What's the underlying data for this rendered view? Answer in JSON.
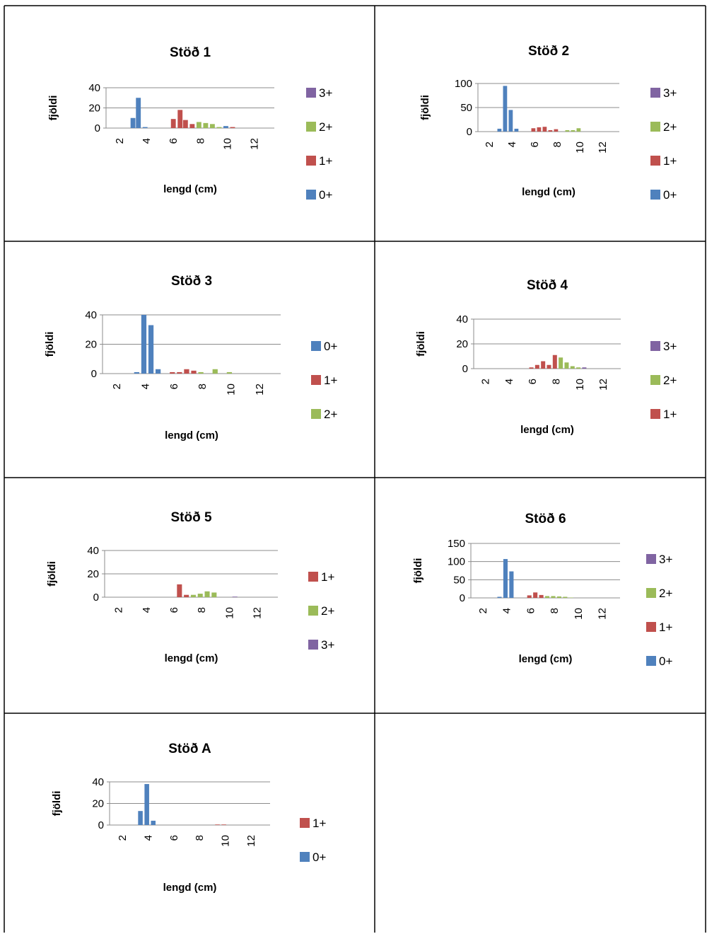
{
  "colors": {
    "0+": "#4f81bd",
    "1+": "#c0504d",
    "2+": "#9bbb59",
    "3+": "#8064a2"
  },
  "chart_data": [
    {
      "type": "bar",
      "title": "Stöð 1",
      "xlabel": "lengd (cm)",
      "ylabel": "fjöldi",
      "xlim": [
        1,
        13.5
      ],
      "ylim": [
        0,
        40
      ],
      "yticks": [
        0,
        20,
        40
      ],
      "xticks": [
        2,
        4,
        6,
        8,
        10,
        12
      ],
      "grid": true,
      "legend_placement": "right",
      "legend_order": [
        "3+",
        "2+",
        "1+",
        "0+"
      ],
      "series": [
        {
          "name": "0+",
          "points": [
            [
              3.0,
              10
            ],
            [
              3.4,
              30
            ],
            [
              3.9,
              1
            ],
            [
              9.9,
              2
            ]
          ]
        },
        {
          "name": "1+",
          "points": [
            [
              6.0,
              9
            ],
            [
              6.5,
              18
            ],
            [
              6.9,
              8
            ],
            [
              7.4,
              4
            ],
            [
              10.4,
              1
            ]
          ]
        },
        {
          "name": "2+",
          "points": [
            [
              7.9,
              6
            ],
            [
              8.4,
              5
            ],
            [
              8.9,
              4
            ],
            [
              9.4,
              1
            ]
          ]
        },
        {
          "name": "3+",
          "points": []
        }
      ]
    },
    {
      "type": "bar",
      "title": "Stöð 2",
      "xlabel": "lengd (cm)",
      "ylabel": "fjöldi",
      "xlim": [
        1,
        13.5
      ],
      "ylim": [
        0,
        100
      ],
      "yticks": [
        0,
        50,
        100
      ],
      "xticks": [
        2,
        4,
        6,
        8,
        10,
        12
      ],
      "grid": true,
      "legend_placement": "right",
      "legend_order": [
        "3+",
        "2+",
        "1+",
        "0+"
      ],
      "series": [
        {
          "name": "0+",
          "points": [
            [
              2.9,
              6
            ],
            [
              3.4,
              95
            ],
            [
              3.9,
              45
            ],
            [
              4.4,
              6
            ]
          ]
        },
        {
          "name": "1+",
          "points": [
            [
              5.9,
              7
            ],
            [
              6.4,
              9
            ],
            [
              6.9,
              10
            ],
            [
              7.4,
              3
            ],
            [
              7.9,
              5
            ]
          ]
        },
        {
          "name": "2+",
          "points": [
            [
              8.9,
              3
            ],
            [
              9.4,
              3
            ],
            [
              9.9,
              7
            ]
          ]
        },
        {
          "name": "3+",
          "points": []
        }
      ]
    },
    {
      "type": "bar",
      "title": "Stöð 3",
      "xlabel": "lengd (cm)",
      "ylabel": "fjöldi",
      "xlim": [
        1,
        13.5
      ],
      "ylim": [
        0,
        40
      ],
      "yticks": [
        0,
        20,
        40
      ],
      "xticks": [
        2,
        4,
        6,
        8,
        10,
        12
      ],
      "grid": true,
      "legend_placement": "right",
      "legend_order": [
        "0+",
        "1+",
        "2+"
      ],
      "series": [
        {
          "name": "0+",
          "points": [
            [
              3.4,
              1
            ],
            [
              3.9,
              40
            ],
            [
              4.4,
              33
            ],
            [
              4.9,
              3
            ]
          ]
        },
        {
          "name": "1+",
          "points": [
            [
              5.9,
              1
            ],
            [
              6.4,
              1
            ],
            [
              6.9,
              3
            ],
            [
              7.4,
              2
            ]
          ]
        },
        {
          "name": "2+",
          "points": [
            [
              7.9,
              1
            ],
            [
              8.9,
              3
            ],
            [
              9.9,
              1
            ]
          ]
        }
      ]
    },
    {
      "type": "bar",
      "title": "Stöð 4",
      "xlabel": "lengd (cm)",
      "ylabel": "fjöldi",
      "xlim": [
        1,
        13.5
      ],
      "ylim": [
        0,
        40
      ],
      "yticks": [
        0,
        20,
        40
      ],
      "xticks": [
        2,
        4,
        6,
        8,
        10,
        12
      ],
      "grid": true,
      "legend_placement": "right",
      "legend_order": [
        "3+",
        "2+",
        "1+"
      ],
      "series": [
        {
          "name": "1+",
          "points": [
            [
              5.9,
              1
            ],
            [
              6.4,
              3
            ],
            [
              6.9,
              6
            ],
            [
              7.4,
              3
            ],
            [
              7.9,
              11
            ]
          ]
        },
        {
          "name": "2+",
          "points": [
            [
              8.4,
              9
            ],
            [
              8.9,
              5
            ],
            [
              9.4,
              2
            ],
            [
              9.9,
              1
            ]
          ]
        },
        {
          "name": "3+",
          "points": [
            [
              10.4,
              1
            ]
          ]
        }
      ]
    },
    {
      "type": "bar",
      "title": "Stöð 5",
      "xlabel": "lengd (cm)",
      "ylabel": "fjöldi",
      "xlim": [
        1,
        13.5
      ],
      "ylim": [
        0,
        40
      ],
      "yticks": [
        0,
        20,
        40
      ],
      "xticks": [
        2,
        4,
        6,
        8,
        10,
        12
      ],
      "grid": true,
      "legend_placement": "right",
      "legend_order": [
        "1+",
        "2+",
        "3+"
      ],
      "series": [
        {
          "name": "1+",
          "points": [
            [
              6.4,
              11
            ],
            [
              6.9,
              2
            ]
          ]
        },
        {
          "name": "2+",
          "points": [
            [
              7.4,
              2
            ],
            [
              7.9,
              3
            ],
            [
              8.4,
              5
            ],
            [
              8.9,
              4
            ]
          ]
        },
        {
          "name": "3+",
          "points": [
            [
              10.4,
              0.5
            ]
          ]
        }
      ]
    },
    {
      "type": "bar",
      "title": "Stöð 6",
      "xlabel": "lengd (cm)",
      "ylabel": "fjöldi",
      "xlim": [
        1,
        13.5
      ],
      "ylim": [
        0,
        150
      ],
      "yticks": [
        0,
        50,
        100,
        150
      ],
      "xticks": [
        2,
        4,
        6,
        8,
        10,
        12
      ],
      "grid": true,
      "legend_placement": "right",
      "legend_order": [
        "3+",
        "2+",
        "1+",
        "0+"
      ],
      "series": [
        {
          "name": "0+",
          "points": [
            [
              3.4,
              3
            ],
            [
              3.9,
              107
            ],
            [
              4.4,
              73
            ]
          ]
        },
        {
          "name": "1+",
          "points": [
            [
              5.9,
              7
            ],
            [
              6.4,
              15
            ],
            [
              6.9,
              8
            ]
          ]
        },
        {
          "name": "2+",
          "points": [
            [
              7.4,
              5
            ],
            [
              7.9,
              5
            ],
            [
              8.4,
              4
            ],
            [
              8.9,
              3
            ],
            [
              9.4,
              1
            ]
          ]
        },
        {
          "name": "3+",
          "points": []
        }
      ]
    },
    {
      "type": "bar",
      "title": "Stöð A",
      "xlabel": "lengd (cm)",
      "ylabel": "fjöldi",
      "xlim": [
        1,
        13.5
      ],
      "ylim": [
        0,
        40
      ],
      "yticks": [
        0,
        20,
        40
      ],
      "xticks": [
        2,
        4,
        6,
        8,
        10,
        12
      ],
      "grid": true,
      "legend_placement": "right",
      "legend_order": [
        "1+",
        "0+"
      ],
      "series": [
        {
          "name": "0+",
          "points": [
            [
              3.4,
              13
            ],
            [
              3.9,
              38
            ],
            [
              4.4,
              4
            ]
          ]
        },
        {
          "name": "1+",
          "points": [
            [
              9.4,
              0.5
            ],
            [
              9.9,
              0.5
            ]
          ]
        }
      ]
    }
  ]
}
